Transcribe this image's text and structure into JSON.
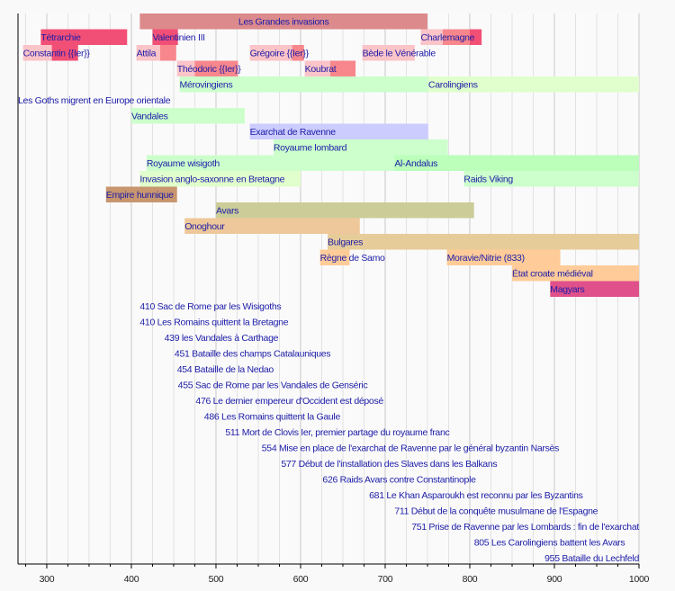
{
  "chart_data": {
    "type": "timeline",
    "xlim": [
      266,
      1000
    ],
    "x_ticks": [
      300,
      400,
      500,
      600,
      700,
      800,
      900,
      1000
    ],
    "x_tick_labels": [
      "300",
      "400",
      "500",
      "600",
      "700",
      "800",
      "900",
      "1000"
    ],
    "grid": "vertical every 25 years",
    "rows": [
      {
        "bars": [
          {
            "label": "Les Grandes invasions",
            "label_align": "center",
            "segments": [
              {
                "start": 410,
                "end": 750,
                "color": "#dc8a8c"
              }
            ]
          }
        ]
      },
      {
        "bars": [
          {
            "label": "Tétrarchie",
            "segments": [
              {
                "start": 293,
                "end": 395,
                "color": "#f24f76"
              }
            ]
          },
          {
            "label": "Valentinien III",
            "segments": [
              {
                "start": 425,
                "end": 455,
                "color": "#f24f76"
              }
            ]
          },
          {
            "label": "Charlemagne",
            "segments": [
              {
                "start": 742,
                "end": 768,
                "color": "#fbc4c8"
              },
              {
                "start": 768,
                "end": 800,
                "color": "#f7878c"
              },
              {
                "start": 800,
                "end": 814,
                "color": "#f24f76"
              }
            ]
          }
        ]
      },
      {
        "bars": [
          {
            "label": "Constantin {{Ier}}",
            "segments": [
              {
                "start": 272,
                "end": 306,
                "color": "#fbc4c8"
              },
              {
                "start": 306,
                "end": 337,
                "color": "#f24f76"
              }
            ]
          },
          {
            "label": "Attila",
            "segments": [
              {
                "start": 406,
                "end": 434,
                "color": "#fbc4c8"
              },
              {
                "start": 434,
                "end": 453,
                "color": "#f7878c"
              }
            ]
          },
          {
            "label": "Grégoire {{Ier}}",
            "segments": [
              {
                "start": 540,
                "end": 590,
                "color": "#fbc4c8"
              },
              {
                "start": 590,
                "end": 604,
                "color": "#f7878c"
              }
            ]
          },
          {
            "label": "Bède le Vénérable",
            "segments": [
              {
                "start": 673,
                "end": 735,
                "color": "#fbc4c8"
              }
            ]
          }
        ]
      },
      {
        "bars": [
          {
            "label": "Théodoric {{Ier}}",
            "segments": [
              {
                "start": 454,
                "end": 475,
                "color": "#fbc4c8"
              },
              {
                "start": 475,
                "end": 526,
                "color": "#f7878c"
              }
            ]
          },
          {
            "label": "Koubrat",
            "segments": [
              {
                "start": 605,
                "end": 635,
                "color": "#fbc4c8"
              },
              {
                "start": 635,
                "end": 665,
                "color": "#f7878c"
              }
            ]
          }
        ]
      },
      {
        "bars": [
          {
            "label": "Mérovingiens",
            "segments": [
              {
                "start": 457,
                "end": 751,
                "color": "#ccffcc"
              }
            ]
          },
          {
            "label": "Carolingiens",
            "segments": [
              {
                "start": 751,
                "end": 1000,
                "color": "#e0ffcc"
              }
            ]
          }
        ]
      },
      {
        "bars": [
          {
            "label": "Les Goths migrent en Europe orientale",
            "segments": [
              {
                "start": 266,
                "end": 266,
                "color": "#ccffcc"
              }
            ]
          }
        ]
      },
      {
        "bars": [
          {
            "label": "Vandales",
            "segments": [
              {
                "start": 400,
                "end": 534,
                "color": "#ccffcc"
              }
            ]
          }
        ]
      },
      {
        "bars": [
          {
            "label": "Exarchat de Ravenne",
            "segments": [
              {
                "start": 540,
                "end": 751,
                "color": "#ccccff"
              }
            ]
          }
        ]
      },
      {
        "bars": [
          {
            "label": "Royaume lombard",
            "segments": [
              {
                "start": 568,
                "end": 774,
                "color": "#ccffcc"
              }
            ]
          }
        ]
      },
      {
        "bars": [
          {
            "label": "Royaume wisigoth",
            "segments": [
              {
                "start": 418,
                "end": 720,
                "color": "#ccffcc"
              }
            ]
          },
          {
            "label": "Al-Andalus",
            "segments": [
              {
                "start": 711,
                "end": 1000,
                "color": "#bbffbb"
              }
            ]
          }
        ]
      },
      {
        "bars": [
          {
            "label": "Invasion anglo-saxonne en Bretagne",
            "segments": [
              {
                "start": 410,
                "end": 600,
                "color": "#e0ffcc"
              }
            ]
          },
          {
            "label": "Raids Viking",
            "segments": [
              {
                "start": 793,
                "end": 1000,
                "color": "#ccffcc"
              }
            ]
          }
        ]
      },
      {
        "bars": [
          {
            "label": "Empire hunnique",
            "segments": [
              {
                "start": 370,
                "end": 454,
                "color": "#c8966e"
              }
            ]
          }
        ]
      },
      {
        "bars": [
          {
            "label": "Avars",
            "segments": [
              {
                "start": 500,
                "end": 805,
                "color": "#cccc99"
              }
            ]
          }
        ]
      },
      {
        "bars": [
          {
            "label": "Onoghour",
            "segments": [
              {
                "start": 463,
                "end": 670,
                "color": "#eec89a"
              }
            ]
          }
        ]
      },
      {
        "bars": [
          {
            "label": "Bulgares",
            "segments": [
              {
                "start": 632,
                "end": 1000,
                "color": "#e6cc99"
              }
            ]
          }
        ]
      },
      {
        "bars": [
          {
            "label": "Règne de Samo",
            "segments": [
              {
                "start": 623,
                "end": 658,
                "color": "#ffcc99"
              }
            ]
          },
          {
            "label": "Moravie/Nitrie (833)",
            "segments": [
              {
                "start": 773,
                "end": 907,
                "color": "#ffcc99"
              }
            ]
          }
        ]
      },
      {
        "bars": [
          {
            "label": "État croate médiéval",
            "segments": [
              {
                "start": 850,
                "end": 1000,
                "color": "#ffcc99"
              }
            ]
          }
        ]
      },
      {
        "bars": [
          {
            "label": "Magyars",
            "segments": [
              {
                "start": 895,
                "end": 1000,
                "color": "#e0508a"
              }
            ]
          }
        ]
      }
    ],
    "events": [
      {
        "year": 410,
        "label": "410 Sac de Rome par les Wisigoths"
      },
      {
        "year": 410,
        "label": "410 Les Romains quittent la Bretagne"
      },
      {
        "year": 439,
        "label": "439 les Vandales à Carthage"
      },
      {
        "year": 451,
        "label": "451 Bataille des champs Catalauniques"
      },
      {
        "year": 454,
        "label": "454 Bataille de la Nedao"
      },
      {
        "year": 455,
        "label": "455 Sac de Rome par les Vandales de Genséric"
      },
      {
        "year": 476,
        "label": "476 Le dernier empereur d'Occident est déposé"
      },
      {
        "year": 486,
        "label": "486 Les Romains quittent la Gaule"
      },
      {
        "year": 511,
        "label": "511 Mort de Clovis Ier, premier partage du royaume franc"
      },
      {
        "year": 554,
        "label": "554 Mise en place de l'exarchat de Ravenne par le général byzantin Narsès"
      },
      {
        "year": 577,
        "label": "577 Début de l'installation des Slaves dans les Balkans"
      },
      {
        "year": 626,
        "label": "626 Raids Avars contre Constantinople"
      },
      {
        "year": 681,
        "label": "681 Le Khan Asparoukh est reconnu par les Byzantins"
      },
      {
        "year": 711,
        "label": "711 Début de la conquête musulmane de l'Espagne"
      },
      {
        "year": 751,
        "label": "751 Prise de Ravenne par les Lombards : fin de l'exarchat"
      },
      {
        "year": 805,
        "label": "805 Les Carolingiens battent les Avars"
      },
      {
        "year": 955,
        "label": "955 Bataille du Lechfeld"
      }
    ],
    "text_color": "#1c1ca8"
  }
}
